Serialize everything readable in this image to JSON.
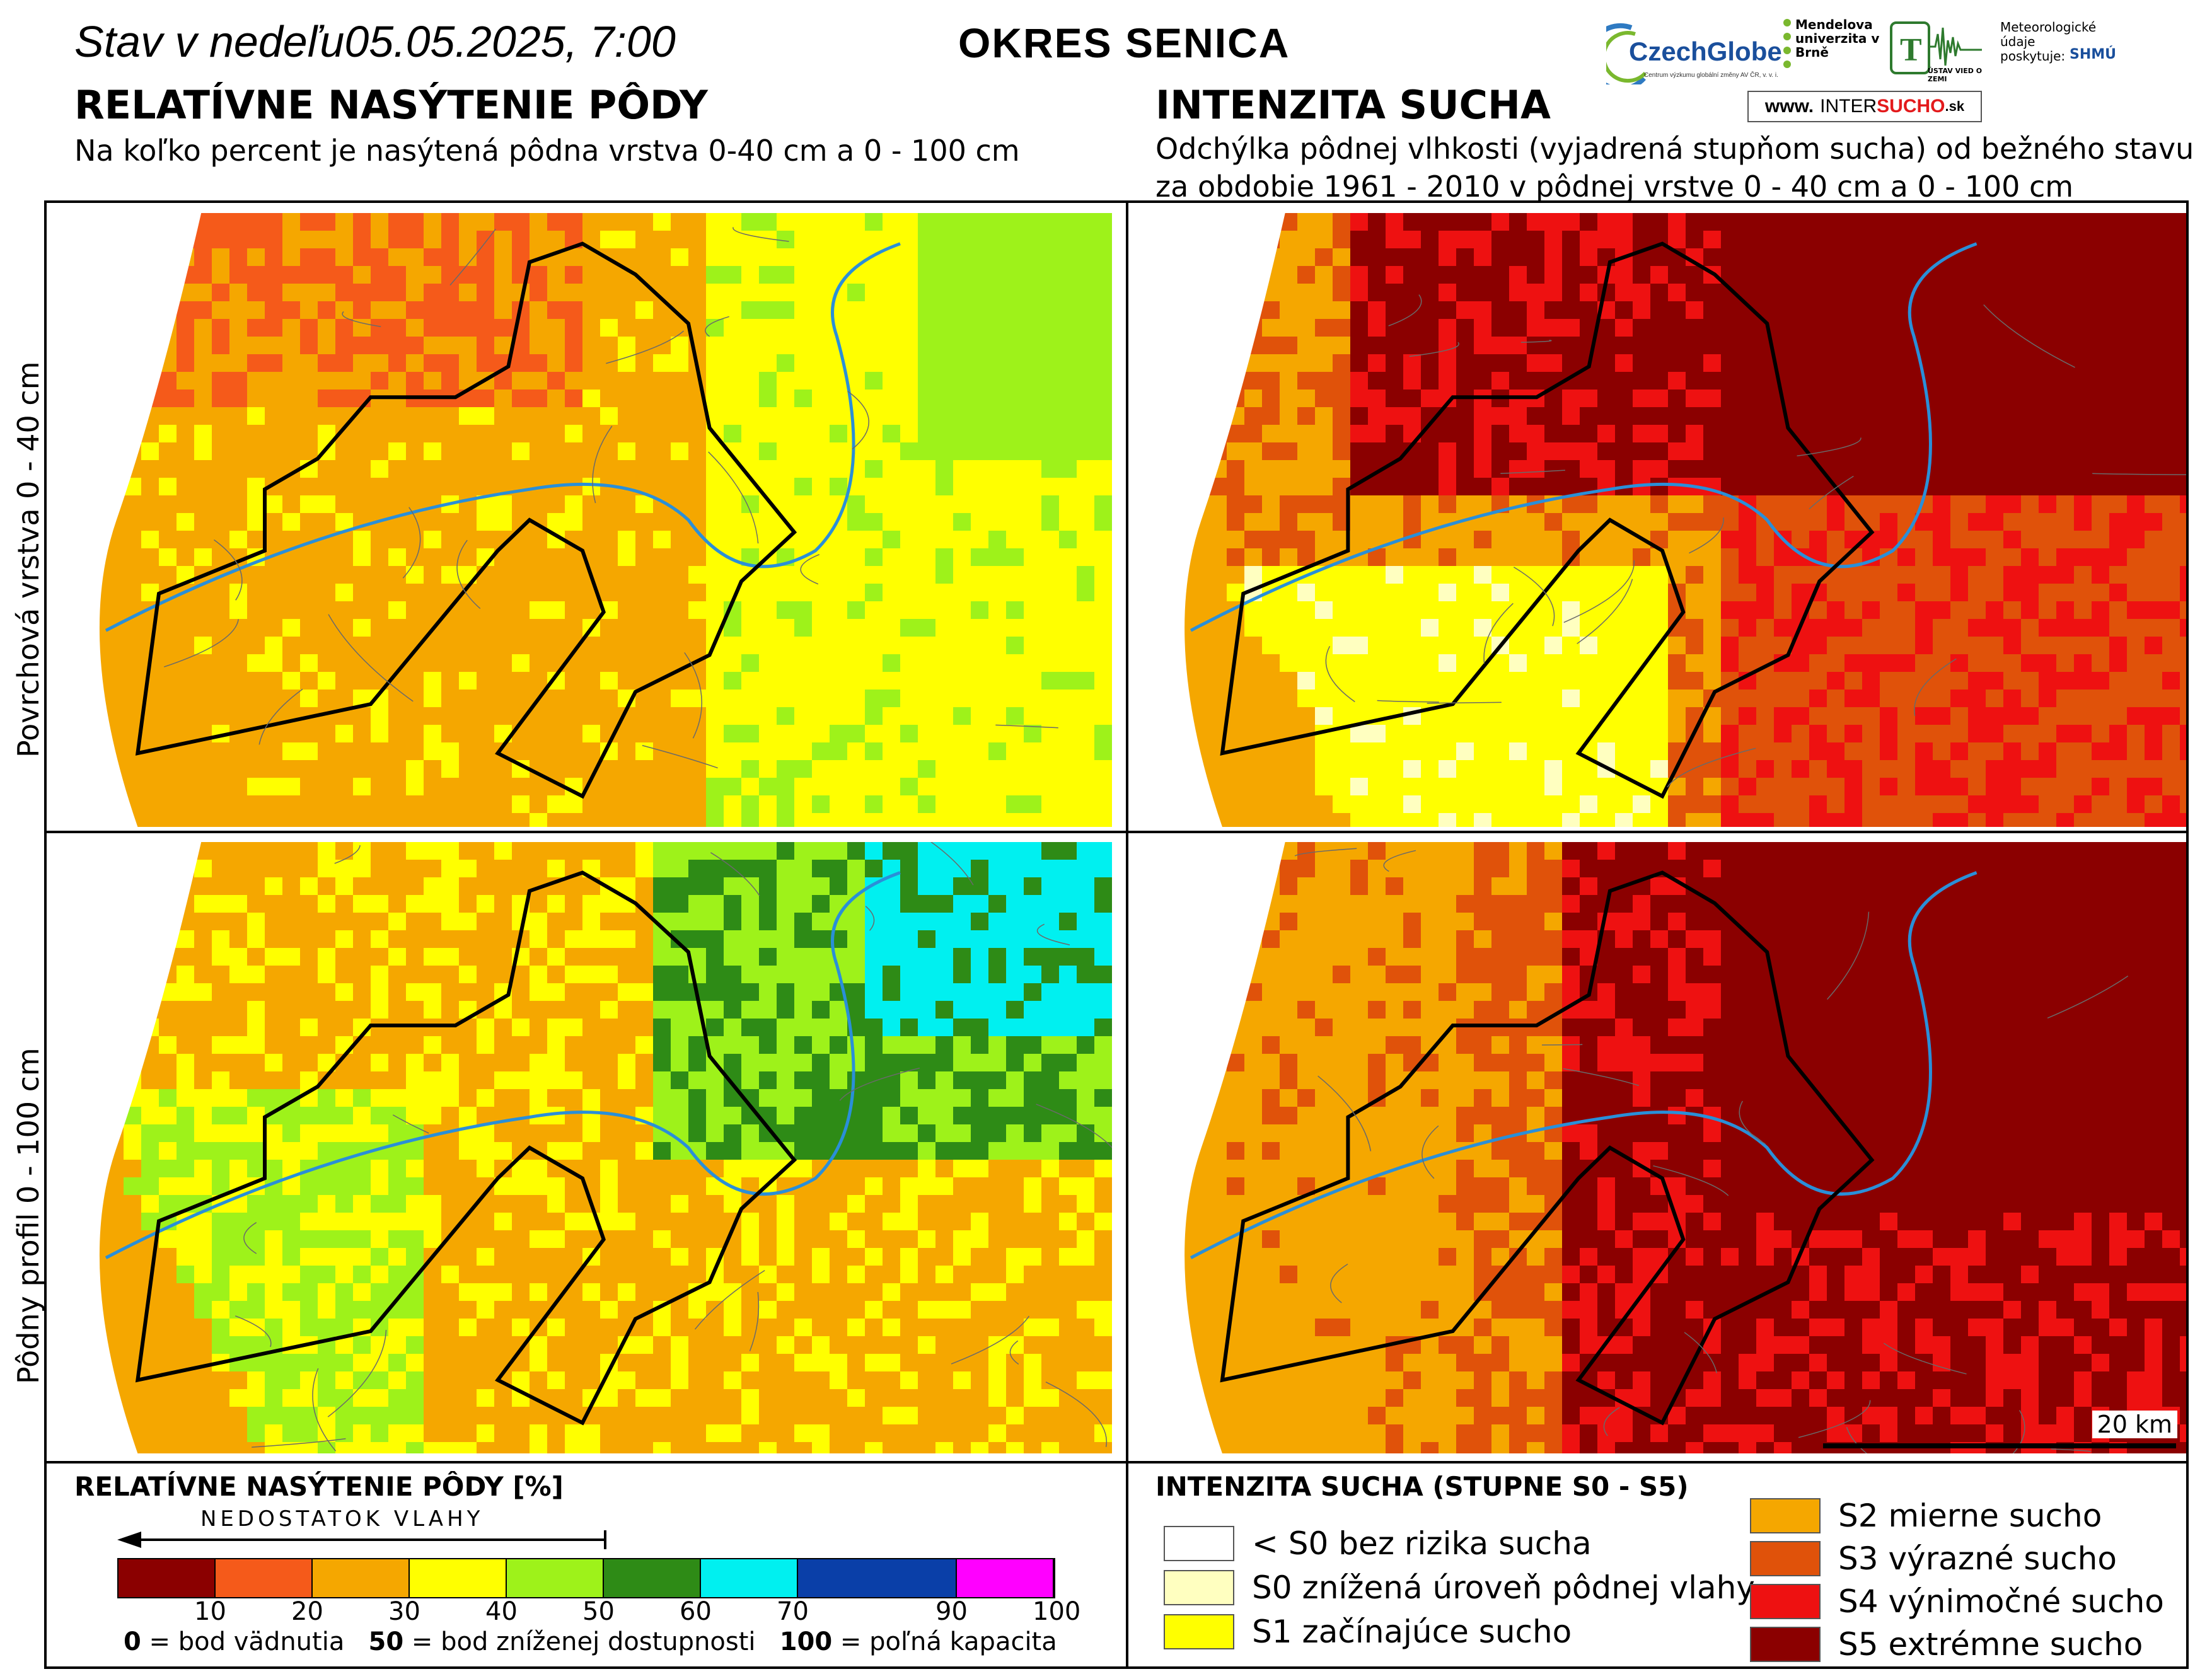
{
  "header": {
    "status_prefix": "Stav v nedeľu",
    "status_date": "05.05.2025, 7:00",
    "district": "OKRES  SENICA"
  },
  "left": {
    "heading": "RELATÍVNE NASÝTENIE PÔDY",
    "subtitle": "Na koľko percent je nasýtená pôdna vrstva 0-40 cm a 0 - 100 cm"
  },
  "right": {
    "heading": "INTENZITA SUCHA",
    "subtitle_line1": "Odchýlka pôdnej vlhkosti (vyjadrená stupňom sucha) od bežného stavu",
    "subtitle_line2": "za obdobie 1961 - 2010 v pôdnej vrstve 0 - 40 cm a 0 - 100 cm"
  },
  "row_labels": {
    "top": "Povrchová vrstva 0 - 40 cm",
    "bottom": "Pôdny profil 0 - 100 cm"
  },
  "logos": {
    "czechglobe": "CzechGlobe",
    "czechglobe_sub": "Centrum výzkumu globální změny AV ČR, v. v. i.",
    "mendel": "Mendelova univerzita v Brně",
    "uvz": "ÚSTAV VIED O ZEMI",
    "meteo": "Meteorologické údaje poskytuje:",
    "shmu": "SHMÚ",
    "inter_prefix": "www.",
    "inter_mid": "INTER",
    "inter_red": "SUCHO",
    "inter_suffix": ".sk"
  },
  "scale_bar": "20 km",
  "saturation_legend": {
    "title": "RELATÍVNE NASÝTENIE PÔDY [%]",
    "arrow_label": "NEDOSTATOK VLAHY",
    "colors": [
      "#8b0000",
      "#f55a1a",
      "#f5a700",
      "#ffff00",
      "#9ef21a",
      "#2e8b16",
      "#00f0f0",
      "#0a3fa8",
      "#ff00ff"
    ],
    "ticks": [
      "10",
      "20",
      "30",
      "40",
      "50",
      "60",
      "70",
      "90",
      "100"
    ],
    "note_0": "0",
    "note_0_text": " = bod vädnutia",
    "note_50": "50",
    "note_50_text": " = bod zníženej dostupnosti",
    "note_100": "100",
    "note_100_text": " = poľná kapacita"
  },
  "drought_legend": {
    "title": "INTENZITA SUCHA (STUPNE S0 - S5)",
    "items": [
      {
        "label": "< S0 bez rizika sucha",
        "color": "#ffffff"
      },
      {
        "label": "S0 znížená úroveň pôdnej vlahy",
        "color": "#ffffc0"
      },
      {
        "label": "S1 začínajúce sucho",
        "color": "#ffff00"
      },
      {
        "label": "S2 mierne sucho",
        "color": "#f5a700"
      },
      {
        "label": "S3 výrazné sucho",
        "color": "#e0520a"
      },
      {
        "label": "S4 výnimočné sucho",
        "color": "#ee1111"
      },
      {
        "label": "S5 extrémne sucho",
        "color": "#8b0000"
      }
    ]
  }
}
